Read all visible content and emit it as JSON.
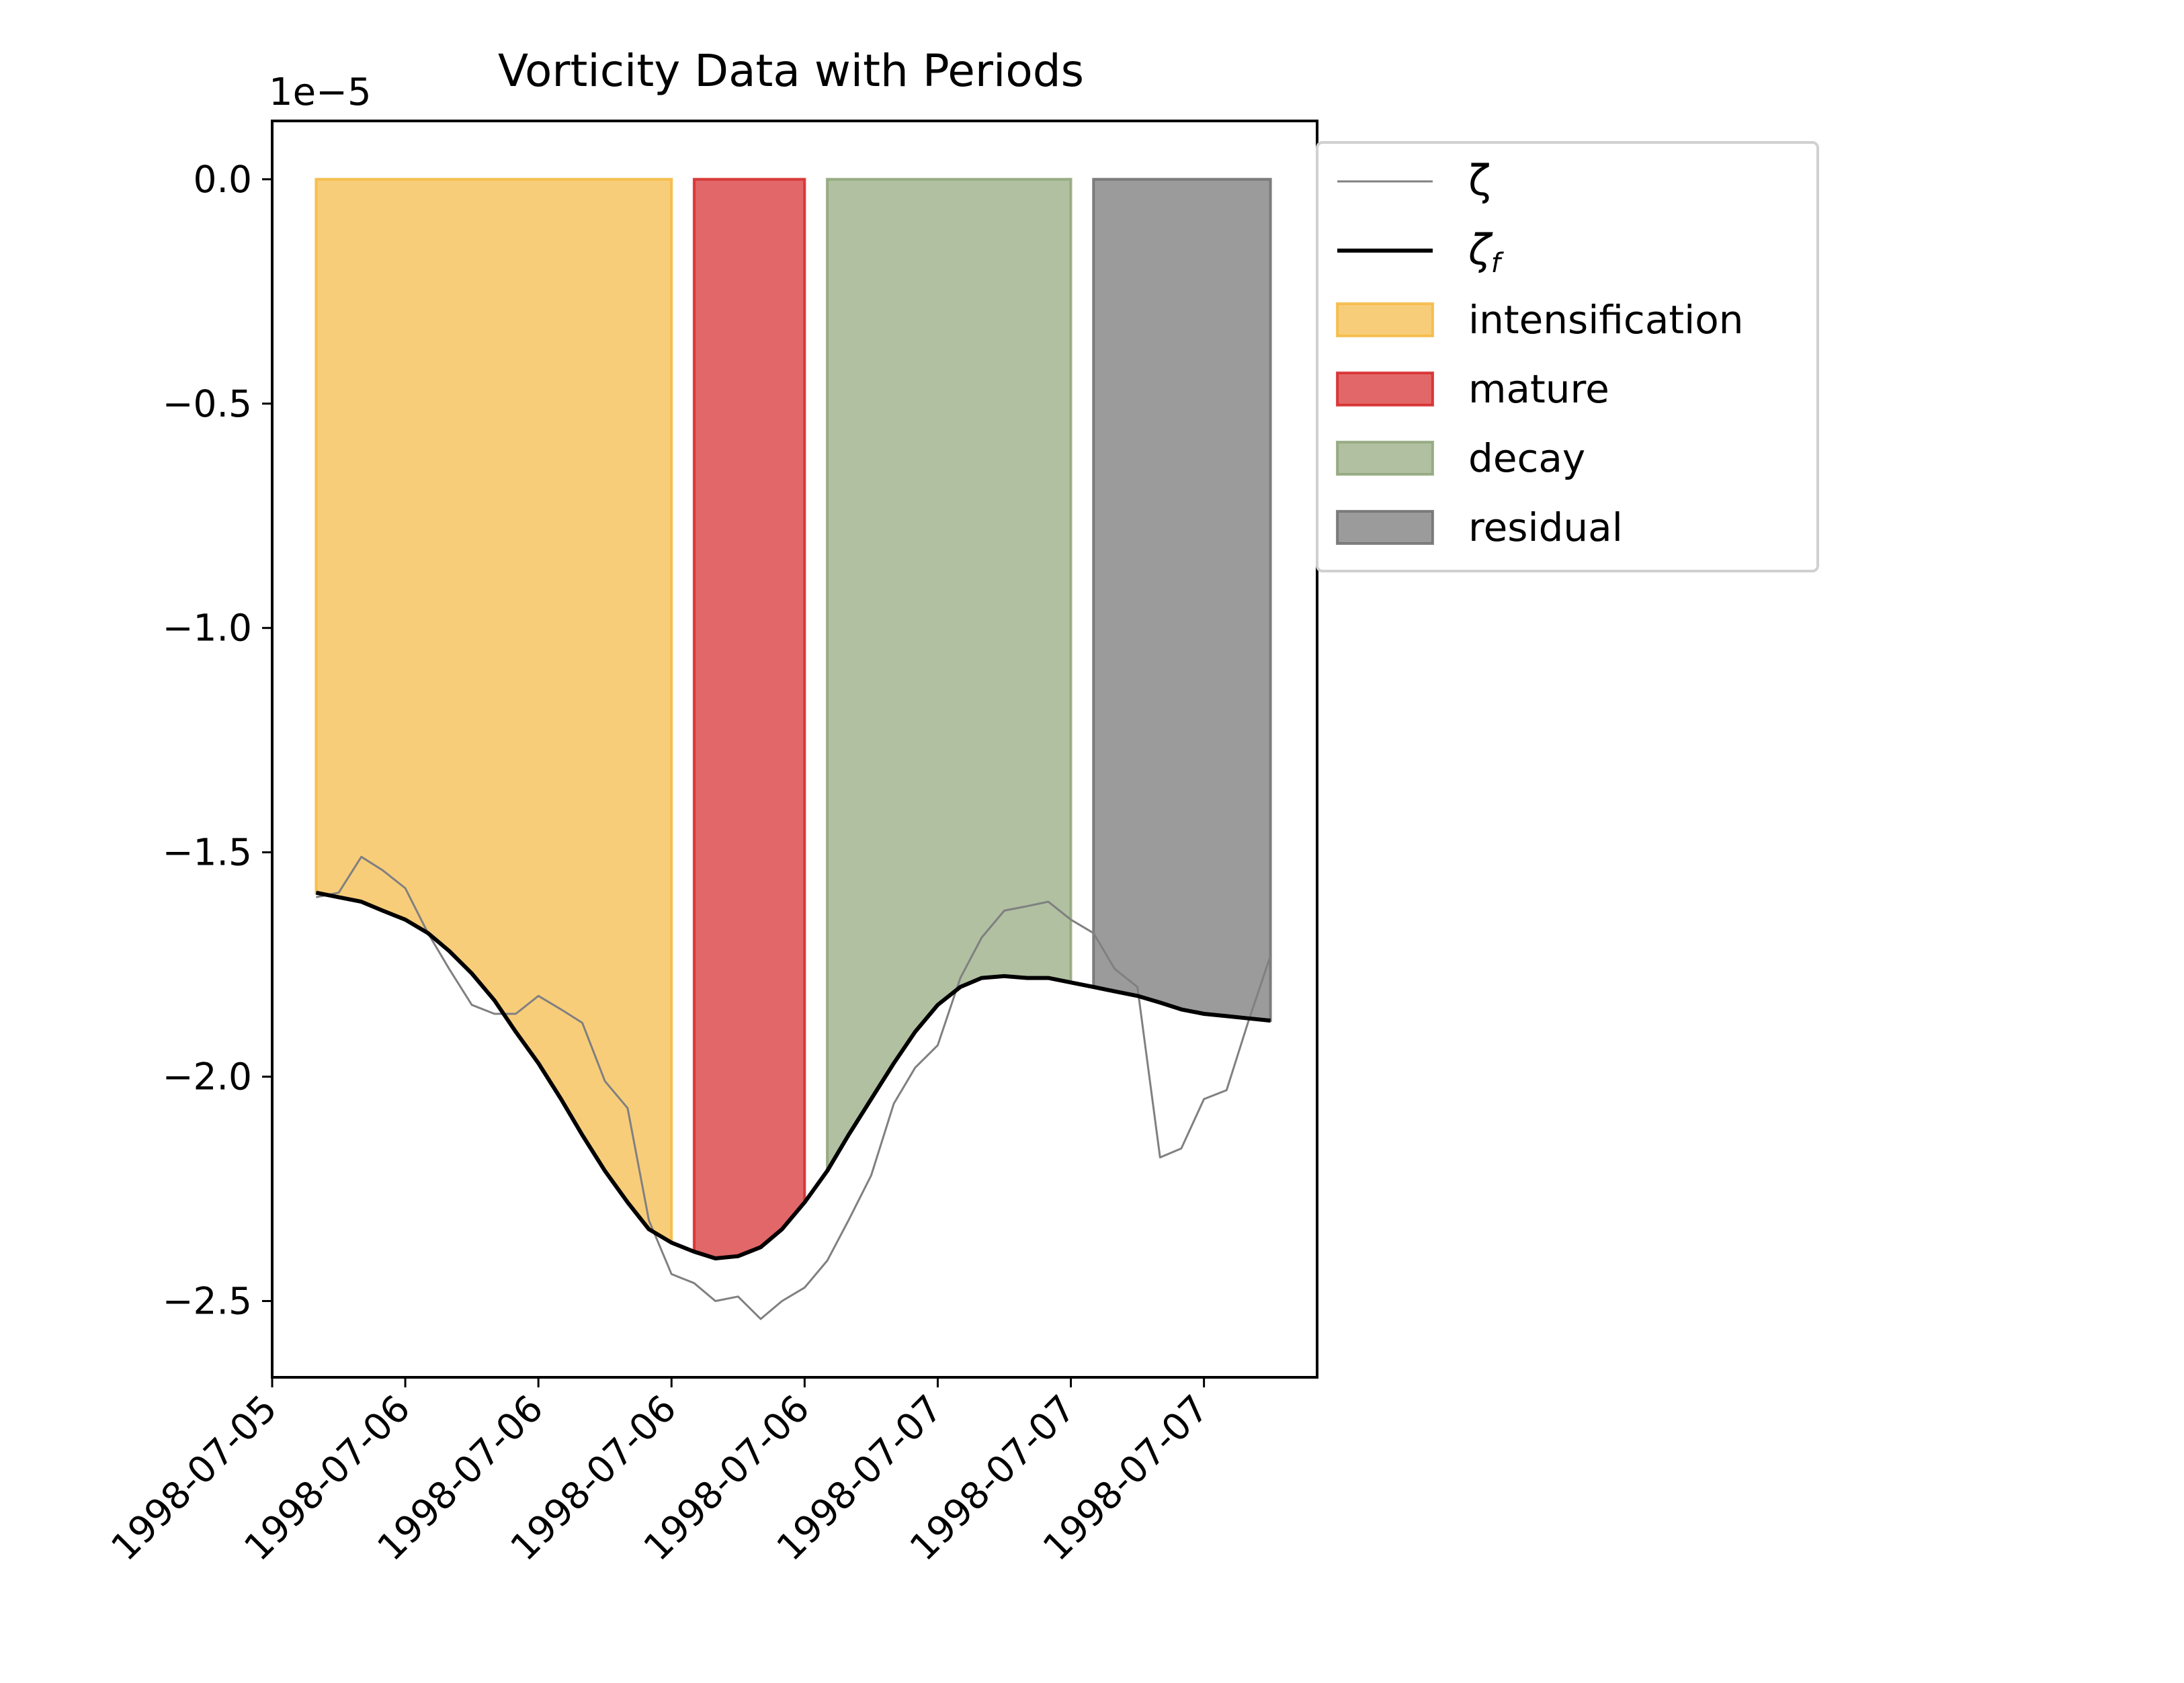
{
  "chart_data": {
    "type": "line",
    "title": "Vorticity Data with Periods",
    "offset_label": "1e−5",
    "xlabel": "",
    "ylabel": "",
    "xlim": [
      0.0,
      7.85
    ],
    "ylim": [
      -2.67,
      0.13
    ],
    "scale": 1e-05,
    "yticks": [
      {
        "value": 0.0,
        "label": "0.0"
      },
      {
        "value": -0.5,
        "label": "−0.5"
      },
      {
        "value": -1.0,
        "label": "−1.0"
      },
      {
        "value": -1.5,
        "label": "−1.5"
      },
      {
        "value": -2.0,
        "label": "−2.0"
      },
      {
        "value": -2.5,
        "label": "−2.5"
      }
    ],
    "xticks": [
      {
        "value": 0,
        "label": "1998-07-05"
      },
      {
        "value": 1,
        "label": "1998-07-06"
      },
      {
        "value": 2,
        "label": "1998-07-06"
      },
      {
        "value": 3,
        "label": "1998-07-06"
      },
      {
        "value": 4,
        "label": "1998-07-06"
      },
      {
        "value": 5,
        "label": "1998-07-07"
      },
      {
        "value": 6,
        "label": "1998-07-07"
      },
      {
        "value": 7,
        "label": "1998-07-07"
      }
    ],
    "periods": [
      {
        "name": "intensification",
        "color": "#f5b841",
        "start": 0.33,
        "end": 3.0
      },
      {
        "name": "mature",
        "color": "#d62728",
        "start": 3.17,
        "end": 4.0
      },
      {
        "name": "decay",
        "color": "#8fa579",
        "start": 4.17,
        "end": 6.0
      },
      {
        "name": "residual",
        "color": "#707070",
        "start": 6.17,
        "end": 7.5
      }
    ],
    "series": [
      {
        "name": "ζ",
        "color": "#808080",
        "x": [
          0.33,
          0.5,
          0.67,
          0.83,
          1.0,
          1.17,
          1.33,
          1.5,
          1.67,
          1.83,
          2.0,
          2.17,
          2.33,
          2.5,
          2.67,
          2.83,
          3.0,
          3.17,
          3.33,
          3.5,
          3.67,
          3.83,
          4.0,
          4.17,
          4.33,
          4.5,
          4.67,
          4.83,
          5.0,
          5.17,
          5.33,
          5.5,
          5.67,
          5.83,
          6.0,
          6.17,
          6.33,
          6.5,
          6.67,
          6.83,
          7.0,
          7.17,
          7.33,
          7.5
        ],
        "y": [
          -1.6,
          -1.59,
          -1.51,
          -1.54,
          -1.58,
          -1.68,
          -1.76,
          -1.84,
          -1.86,
          -1.86,
          -1.82,
          -1.85,
          -1.88,
          -2.01,
          -2.07,
          -2.32,
          -2.44,
          -2.46,
          -2.5,
          -2.49,
          -2.54,
          -2.5,
          -2.47,
          -2.41,
          -2.32,
          -2.22,
          -2.06,
          -1.98,
          -1.93,
          -1.78,
          -1.69,
          -1.63,
          -1.62,
          -1.61,
          -1.65,
          -1.68,
          -1.76,
          -1.8,
          -2.18,
          -2.16,
          -2.05,
          -2.03,
          -1.88,
          -1.73
        ]
      },
      {
        "name": "ζ",
        "name_subscript": "f",
        "color": "#000000",
        "x": [
          0.33,
          0.5,
          0.67,
          0.83,
          1.0,
          1.17,
          1.33,
          1.5,
          1.67,
          1.83,
          2.0,
          2.17,
          2.33,
          2.5,
          2.67,
          2.83,
          3.0,
          3.17,
          3.33,
          3.5,
          3.67,
          3.83,
          4.0,
          4.17,
          4.33,
          4.5,
          4.67,
          4.83,
          5.0,
          5.17,
          5.33,
          5.5,
          5.67,
          5.83,
          6.0,
          6.17,
          6.33,
          6.5,
          6.67,
          6.83,
          7.0,
          7.17,
          7.33,
          7.5
        ],
        "y": [
          -1.59,
          -1.6,
          -1.61,
          -1.63,
          -1.65,
          -1.68,
          -1.72,
          -1.77,
          -1.83,
          -1.9,
          -1.97,
          -2.05,
          -2.13,
          -2.21,
          -2.28,
          -2.34,
          -2.37,
          -2.39,
          -2.405,
          -2.4,
          -2.38,
          -2.34,
          -2.28,
          -2.21,
          -2.13,
          -2.05,
          -1.97,
          -1.9,
          -1.84,
          -1.8,
          -1.78,
          -1.776,
          -1.78,
          -1.78,
          -1.79,
          -1.8,
          -1.81,
          -1.82,
          -1.835,
          -1.85,
          -1.86,
          -1.865,
          -1.87,
          -1.875
        ]
      }
    ],
    "legend": {
      "placement": "outside upper right",
      "entries": [
        {
          "label": "ζ",
          "kind": "line",
          "color": "#808080"
        },
        {
          "label": "ζ",
          "subscript": "f",
          "kind": "line",
          "color": "#000000"
        },
        {
          "label": "intensification",
          "kind": "patch",
          "color": "#f5b841"
        },
        {
          "label": "mature",
          "kind": "patch",
          "color": "#d62728"
        },
        {
          "label": "decay",
          "kind": "patch",
          "color": "#8fa579"
        },
        {
          "label": "residual",
          "kind": "patch",
          "color": "#707070"
        }
      ]
    },
    "grid": false
  }
}
